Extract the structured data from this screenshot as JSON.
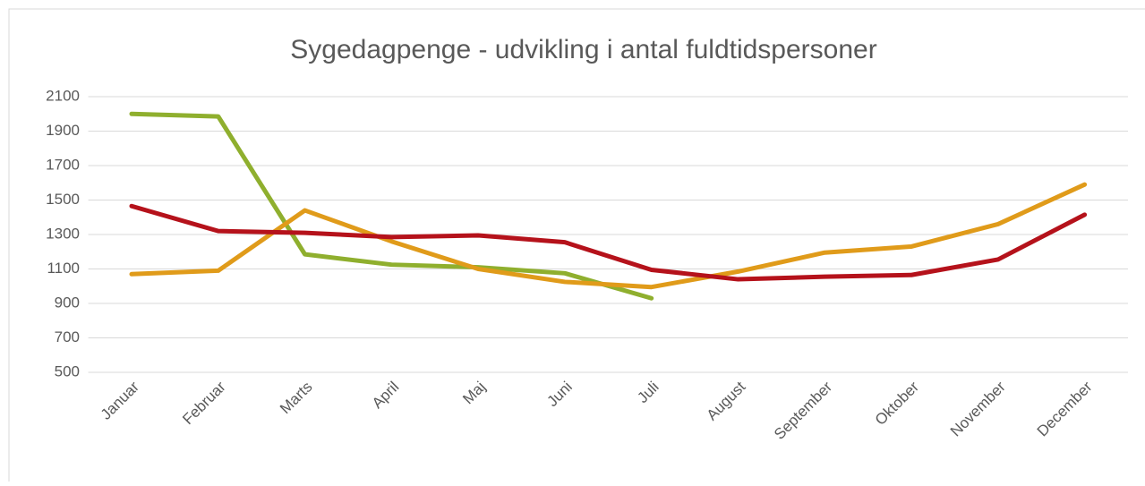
{
  "chart_data": {
    "type": "line",
    "title": "Sygedagpenge - udvikling i antal fuldtidspersoner",
    "categories": [
      "Januar",
      "Februar",
      "Marts",
      "April",
      "Maj",
      "Juni",
      "Juli",
      "August",
      "September",
      "Oktober",
      "November",
      "December"
    ],
    "series": [
      {
        "color": "#8faf2e",
        "values": [
          2000,
          1985,
          1185,
          1125,
          1110,
          1075,
          930,
          null,
          null,
          null,
          null,
          null
        ]
      },
      {
        "color": "#e09b1a",
        "values": [
          1070,
          1090,
          1440,
          1260,
          1100,
          1025,
          995,
          1085,
          1195,
          1230,
          1360,
          1590
        ]
      },
      {
        "color": "#b5121b",
        "values": [
          1465,
          1320,
          1310,
          1285,
          1295,
          1255,
          1095,
          1040,
          1055,
          1065,
          1155,
          1415
        ]
      }
    ],
    "ylim": [
      500,
      2100
    ],
    "yticks": [
      500,
      700,
      900,
      1100,
      1300,
      1500,
      1700,
      1900,
      2100
    ],
    "grid": true
  }
}
